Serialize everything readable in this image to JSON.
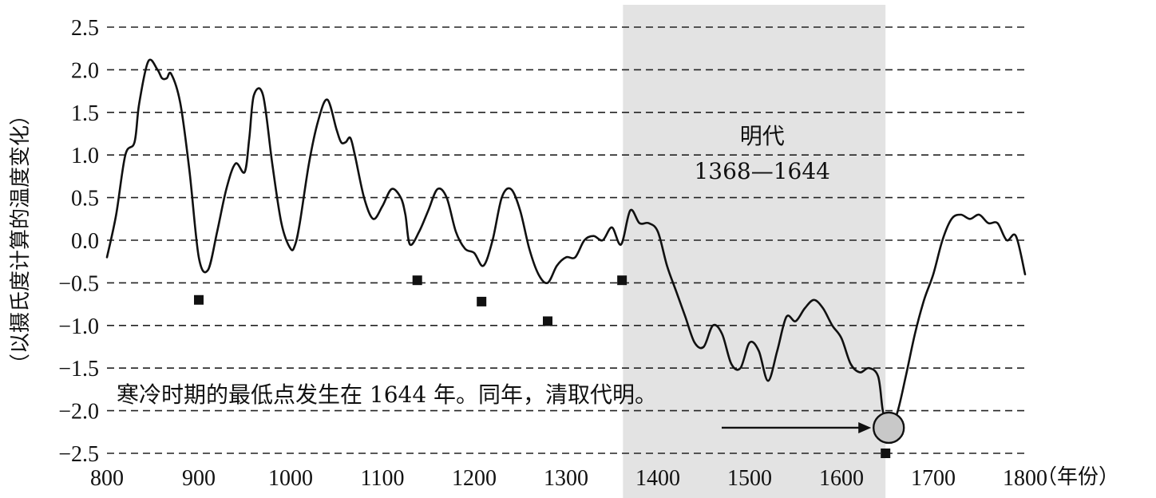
{
  "chart_data": {
    "type": "line",
    "ylabel": "（以摄氏度计算的温度变化）",
    "xunit": "（年份）",
    "xlim": [
      800,
      1800
    ],
    "ylim": [
      -2.5,
      2.5
    ],
    "xticks": [
      800,
      900,
      1000,
      1100,
      1200,
      1300,
      1400,
      1500,
      1600,
      1700,
      1800
    ],
    "yticks": [
      "2.5",
      "2.0",
      "1.5",
      "1.0",
      "0.5",
      "0.0",
      "-0.5",
      "-1.0",
      "-1.5",
      "-2.0",
      "-2.5"
    ],
    "ytick_values": [
      2.5,
      2.0,
      1.5,
      1.0,
      0.5,
      0.0,
      -0.5,
      -1.0,
      -1.5,
      -2.0,
      -2.5
    ],
    "grid": "horizontal-dashed",
    "shaded_region": {
      "label": "明代",
      "range_label": "1368—1644",
      "x_start": 1362,
      "x_end": 1648,
      "color": "#e3e3e3"
    },
    "annotation": "寒冷时期的最低点发生在 1644 年。同年，清取代明。",
    "highlight_point": {
      "x": 1648,
      "y": -2.2,
      "color": "#c8c8c8"
    },
    "markers": [
      {
        "x": 900,
        "y": -0.7
      },
      {
        "x": 1138,
        "y": -0.47
      },
      {
        "x": 1208,
        "y": -0.72
      },
      {
        "x": 1280,
        "y": -0.95
      },
      {
        "x": 1361,
        "y": -0.47
      },
      {
        "x": 1648,
        "y": -2.5
      }
    ],
    "series": [
      {
        "x": [
          800,
          810,
          820,
          830,
          835,
          845,
          855,
          860,
          865,
          870,
          880,
          890,
          900,
          910,
          920,
          930,
          940,
          950,
          955,
          960,
          970,
          980,
          990,
          1000,
          1005,
          1010,
          1020,
          1030,
          1040,
          1050,
          1055,
          1060,
          1065,
          1070,
          1080,
          1090,
          1100,
          1110,
          1120,
          1125,
          1130,
          1140,
          1150,
          1160,
          1170,
          1180,
          1190,
          1200,
          1210,
          1220,
          1230,
          1240,
          1250,
          1260,
          1270,
          1280,
          1290,
          1300,
          1310,
          1320,
          1330,
          1340,
          1350,
          1360,
          1370,
          1380,
          1390,
          1400,
          1410,
          1420,
          1430,
          1440,
          1450,
          1460,
          1470,
          1480,
          1490,
          1500,
          1510,
          1520,
          1530,
          1540,
          1550,
          1560,
          1570,
          1580,
          1590,
          1600,
          1610,
          1620,
          1630,
          1640,
          1645,
          1650,
          1660,
          1670,
          1680,
          1690,
          1700,
          1710,
          1720,
          1730,
          1740,
          1750,
          1760,
          1770,
          1780,
          1790,
          1800
        ],
        "y": [
          -0.2,
          0.3,
          1.0,
          1.15,
          1.6,
          2.1,
          2.0,
          1.9,
          1.9,
          1.95,
          1.6,
          0.8,
          -0.2,
          -0.35,
          0.1,
          0.6,
          0.9,
          0.8,
          1.2,
          1.7,
          1.7,
          0.9,
          0.2,
          -0.1,
          -0.05,
          0.2,
          0.9,
          1.4,
          1.65,
          1.3,
          1.15,
          1.15,
          1.2,
          1.0,
          0.5,
          0.25,
          0.4,
          0.6,
          0.5,
          0.3,
          -0.05,
          0.1,
          0.35,
          0.6,
          0.5,
          0.1,
          -0.1,
          -0.15,
          -0.3,
          0.0,
          0.5,
          0.6,
          0.35,
          -0.1,
          -0.4,
          -0.5,
          -0.3,
          -0.2,
          -0.2,
          0.0,
          0.05,
          0.0,
          0.15,
          -0.05,
          0.35,
          0.2,
          0.2,
          0.1,
          -0.3,
          -0.6,
          -0.9,
          -1.2,
          -1.25,
          -1.0,
          -1.1,
          -1.45,
          -1.5,
          -1.2,
          -1.3,
          -1.65,
          -1.3,
          -0.9,
          -0.95,
          -0.8,
          -0.7,
          -0.8,
          -1.0,
          -1.15,
          -1.45,
          -1.55,
          -1.5,
          -1.6,
          -2.0,
          -2.2,
          -2.05,
          -1.6,
          -1.1,
          -0.7,
          -0.4,
          0.0,
          0.25,
          0.3,
          0.25,
          0.3,
          0.2,
          0.2,
          0.0,
          0.05,
          -0.4
        ]
      }
    ]
  }
}
